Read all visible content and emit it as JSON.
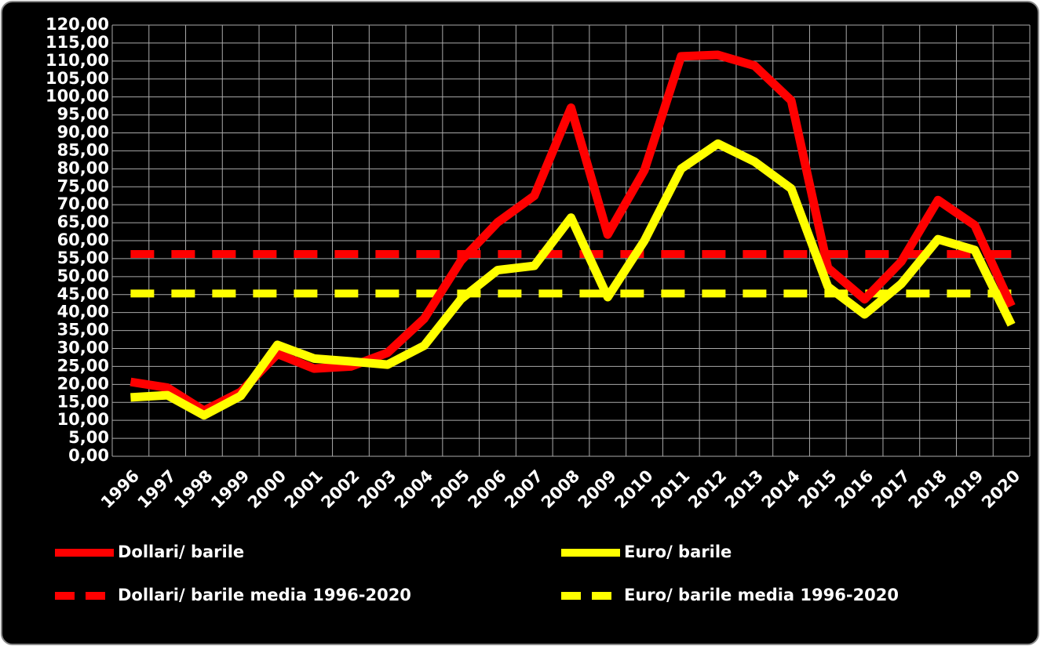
{
  "chart_data": {
    "type": "line",
    "categories": [
      "1996",
      "1997",
      "1998",
      "1999",
      "2000",
      "2001",
      "2002",
      "2003",
      "2004",
      "2005",
      "2006",
      "2007",
      "2008",
      "2009",
      "2010",
      "2011",
      "2012",
      "2013",
      "2014",
      "2015",
      "2016",
      "2017",
      "2018",
      "2019",
      "2020"
    ],
    "series": [
      {
        "name": "Dollari/ barile",
        "color": "#ff0000",
        "style": "solid",
        "values": [
          20.7,
          19.1,
          12.7,
          17.9,
          28.5,
          24.4,
          25.0,
          28.8,
          38.3,
          54.4,
          65.1,
          72.5,
          97.0,
          61.7,
          79.6,
          111.3,
          111.7,
          108.7,
          99.0,
          52.4,
          43.7,
          54.2,
          71.3,
          64.3,
          41.8
        ]
      },
      {
        "name": "Euro/ barile",
        "color": "#ffff00",
        "style": "solid",
        "values": [
          16.4,
          17.0,
          11.4,
          16.8,
          31.0,
          27.2,
          26.4,
          25.5,
          30.8,
          43.7,
          51.8,
          53.0,
          66.4,
          44.3,
          60.0,
          80.0,
          87.0,
          82.0,
          74.5,
          47.2,
          39.5,
          48.0,
          60.4,
          57.4,
          36.6
        ]
      },
      {
        "name": "Dollari/ barile media 1996-2020",
        "color": "#ff0000",
        "style": "dashed",
        "values": [
          56.3,
          56.3,
          56.3,
          56.3,
          56.3,
          56.3,
          56.3,
          56.3,
          56.3,
          56.3,
          56.3,
          56.3,
          56.3,
          56.3,
          56.3,
          56.3,
          56.3,
          56.3,
          56.3,
          56.3,
          56.3,
          56.3,
          56.3,
          56.3,
          56.3
        ]
      },
      {
        "name": "Euro/ barile media 1996-2020",
        "color": "#ffff00",
        "style": "dashed",
        "values": [
          45.3,
          45.3,
          45.3,
          45.3,
          45.3,
          45.3,
          45.3,
          45.3,
          45.3,
          45.3,
          45.3,
          45.3,
          45.3,
          45.3,
          45.3,
          45.3,
          45.3,
          45.3,
          45.3,
          45.3,
          45.3,
          45.3,
          45.3,
          45.3,
          45.3
        ]
      }
    ],
    "ylim": [
      0,
      120
    ],
    "yticks": [
      {
        "value": 0,
        "label": "0,00"
      },
      {
        "value": 5,
        "label": "5,00"
      },
      {
        "value": 10,
        "label": "10,00"
      },
      {
        "value": 15,
        "label": "15,00"
      },
      {
        "value": 20,
        "label": "20,00"
      },
      {
        "value": 25,
        "label": "25,00"
      },
      {
        "value": 30,
        "label": "30,00"
      },
      {
        "value": 35,
        "label": "35,00"
      },
      {
        "value": 40,
        "label": "40,00"
      },
      {
        "value": 45,
        "label": "45,00"
      },
      {
        "value": 50,
        "label": "50,00"
      },
      {
        "value": 55,
        "label": "55,00"
      },
      {
        "value": 60,
        "label": "60,00"
      },
      {
        "value": 65,
        "label": "65,00"
      },
      {
        "value": 70,
        "label": "70,00"
      },
      {
        "value": 75,
        "label": "75,00"
      },
      {
        "value": 80,
        "label": "80,00"
      },
      {
        "value": 85,
        "label": "85,00"
      },
      {
        "value": 90,
        "label": "90,00"
      },
      {
        "value": 95,
        "label": "95,00"
      },
      {
        "value": 100,
        "label": "100,00"
      },
      {
        "value": 105,
        "label": "105,00"
      },
      {
        "value": 110,
        "label": "110,00"
      },
      {
        "value": 115,
        "label": "115,00"
      },
      {
        "value": 120,
        "label": "120,00"
      }
    ],
    "grid": true
  }
}
